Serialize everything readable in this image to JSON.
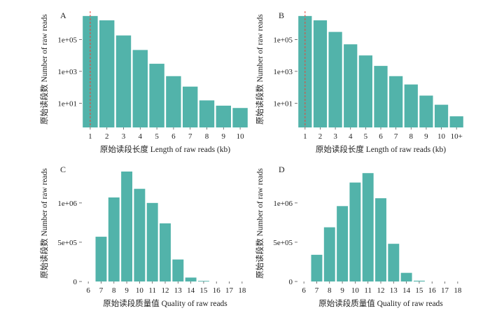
{
  "chart_data": [
    {
      "panel": "A",
      "type": "bar",
      "yscale": "log",
      "ylim": [
        0.3,
        6000000
      ],
      "yticks": [
        10,
        1000,
        100000
      ],
      "yticklabels": [
        "1e+01",
        "1e+03",
        "1e+05"
      ],
      "categories": [
        "1",
        "2",
        "3",
        "4",
        "5",
        "6",
        "7",
        "8",
        "9",
        "10"
      ],
      "values": [
        3000000,
        1600000,
        180000,
        22000,
        3000,
        500,
        110,
        15,
        7,
        5
      ],
      "reference_line": {
        "x": "1",
        "color": "#e8443a",
        "style": "dashed"
      },
      "xlabel": "原始读段长度  Length of raw reads (kb)",
      "ylabel": "原始读段数  Number of raw reads",
      "color": "#52b3aa"
    },
    {
      "panel": "B",
      "type": "bar",
      "yscale": "log",
      "ylim": [
        0.3,
        6000000
      ],
      "yticks": [
        10,
        1000,
        100000
      ],
      "yticklabels": [
        "1e+01",
        "1e+03",
        "1e+05"
      ],
      "categories": [
        "1",
        "2",
        "3",
        "4",
        "5",
        "6",
        "7",
        "8",
        "9",
        "10",
        "10+"
      ],
      "values": [
        3000000,
        1600000,
        300000,
        50000,
        10000,
        2200,
        500,
        150,
        30,
        8,
        1.5
      ],
      "reference_line": {
        "x": "1",
        "color": "#e8443a",
        "style": "dashed"
      },
      "xlabel": "原始读段长度  Length of raw reads (kb)",
      "ylabel": "原始读段数  Number of raw reads",
      "color": "#52b3aa"
    },
    {
      "panel": "C",
      "type": "bar",
      "yscale": "linear",
      "ylim": [
        0,
        1480000
      ],
      "yticks": [
        0,
        500000,
        1000000
      ],
      "yticklabels": [
        "0",
        "5e+05",
        "1e+06"
      ],
      "categories": [
        "6",
        "7",
        "8",
        "9",
        "10",
        "11",
        "12",
        "13",
        "14",
        "15",
        "16",
        "17",
        "18"
      ],
      "values": [
        0,
        570000,
        1070000,
        1400000,
        1180000,
        1000000,
        740000,
        280000,
        50000,
        8000,
        0,
        0,
        0
      ],
      "xlabel": "原始读段质量值  Quality of raw reads",
      "ylabel": "原始读段数  Number of raw reads",
      "color": "#52b3aa"
    },
    {
      "panel": "D",
      "type": "bar",
      "yscale": "linear",
      "ylim": [
        0,
        1480000
      ],
      "yticks": [
        0,
        500000,
        1000000
      ],
      "yticklabels": [
        "0",
        "5e+05",
        "1e+06"
      ],
      "categories": [
        "6",
        "7",
        "8",
        "9",
        "10",
        "11",
        "12",
        "13",
        "14",
        "15",
        "16",
        "17",
        "18"
      ],
      "values": [
        0,
        340000,
        690000,
        960000,
        1260000,
        1380000,
        1060000,
        480000,
        110000,
        10000,
        0,
        0,
        0
      ],
      "xlabel": "原始读段质量值  Quality of raw reads",
      "ylabel": "原始读段数  Number of raw reads",
      "color": "#52b3aa"
    }
  ]
}
